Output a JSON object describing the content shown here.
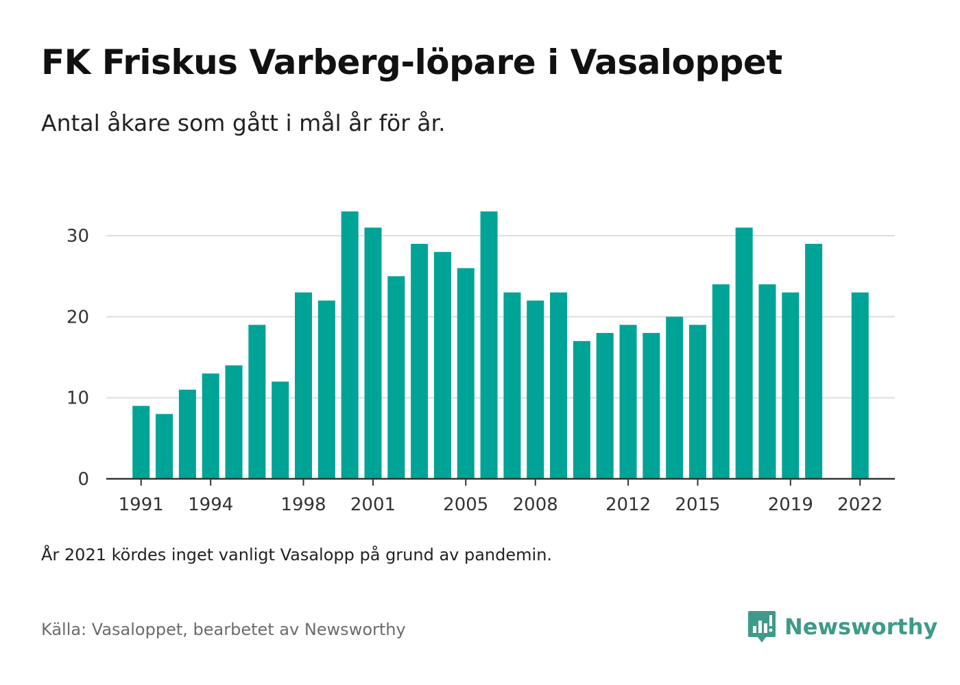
{
  "title": "FK Friskus Varberg-löpare i Vasaloppet",
  "subtitle": "Antal åkare som gått i mål år för år.",
  "note": "År 2021 kördes inget vanligt Vasalopp på grund av pandemin.",
  "source": "Källa: Vasaloppet, bearbetet av Newsworthy",
  "brand": {
    "name": "Newsworthy",
    "color": "#3f9a8a",
    "icon": "newsworthy-logo-icon"
  },
  "colors": {
    "bar": "#00a497",
    "grid": "#dddddd",
    "axis": "#333333"
  },
  "chart_data": {
    "type": "bar",
    "categories": [
      1991,
      1992,
      1993,
      1994,
      1995,
      1996,
      1997,
      1998,
      1999,
      2000,
      2001,
      2002,
      2003,
      2004,
      2005,
      2006,
      2007,
      2008,
      2009,
      2010,
      2011,
      2012,
      2013,
      2014,
      2015,
      2016,
      2017,
      2018,
      2019,
      2020,
      2021,
      2022
    ],
    "values": [
      9,
      8,
      11,
      13,
      14,
      19,
      12,
      23,
      22,
      33,
      31,
      25,
      29,
      28,
      26,
      33,
      23,
      22,
      23,
      17,
      18,
      19,
      18,
      20,
      19,
      24,
      31,
      24,
      23,
      29,
      null,
      23
    ],
    "x_tick_labels": [
      "1991",
      "1994",
      "1998",
      "2001",
      "2005",
      "2008",
      "2012",
      "2015",
      "2019",
      "2022"
    ],
    "y_ticks": [
      0,
      10,
      20,
      30
    ],
    "ylim": [
      0,
      33
    ],
    "grid": true,
    "xlabel": "",
    "ylabel": ""
  }
}
